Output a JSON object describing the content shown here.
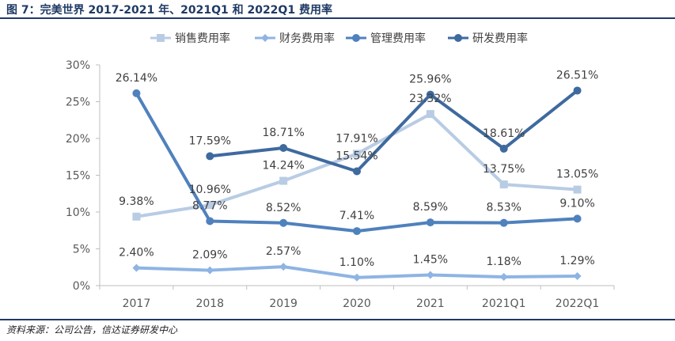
{
  "title": "图 7：完美世界 2017-2021 年、2021Q1 和 2022Q1 费用率",
  "source": "资料来源：公司公告，信达证券研发中心",
  "chart_data": {
    "type": "line",
    "categories": [
      "2017",
      "2018",
      "2019",
      "2020",
      "2021",
      "2021Q1",
      "2022Q1"
    ],
    "ylim": [
      0,
      30
    ],
    "yticks": [
      "0%",
      "5%",
      "10%",
      "15%",
      "20%",
      "25%",
      "30%"
    ],
    "series": [
      {
        "name": "销售费用率",
        "color": "#b8cce4",
        "marker": "square",
        "values": [
          9.38,
          10.96,
          14.24,
          17.91,
          23.32,
          13.75,
          13.05
        ],
        "labels": [
          "9.38%",
          "10.96%",
          "14.24%",
          "17.91%",
          "23.32%",
          "13.75%",
          "13.05%"
        ]
      },
      {
        "name": "财务费用率",
        "color": "#8eb4e3",
        "marker": "diamond",
        "values": [
          2.4,
          2.09,
          2.57,
          1.1,
          1.45,
          1.18,
          1.29
        ],
        "labels": [
          "2.40%",
          "2.09%",
          "2.57%",
          "1.10%",
          "1.45%",
          "1.18%",
          "1.29%"
        ]
      },
      {
        "name": "管理费用率",
        "color": "#4f81bd",
        "marker": "circle",
        "values": [
          26.14,
          8.77,
          8.52,
          7.41,
          8.59,
          8.53,
          9.1
        ],
        "labels": [
          "26.14%",
          "8.77%",
          "8.52%",
          "7.41%",
          "8.59%",
          "8.53%",
          "9.10%"
        ]
      },
      {
        "name": "研发费用率",
        "color": "#3e6a9e",
        "marker": "circle",
        "values": [
          null,
          17.59,
          18.71,
          15.54,
          25.96,
          18.61,
          26.51
        ],
        "labels": [
          null,
          "17.59%",
          "18.71%",
          "15.54%",
          "25.96%",
          "18.61%",
          "26.51%"
        ]
      }
    ]
  }
}
